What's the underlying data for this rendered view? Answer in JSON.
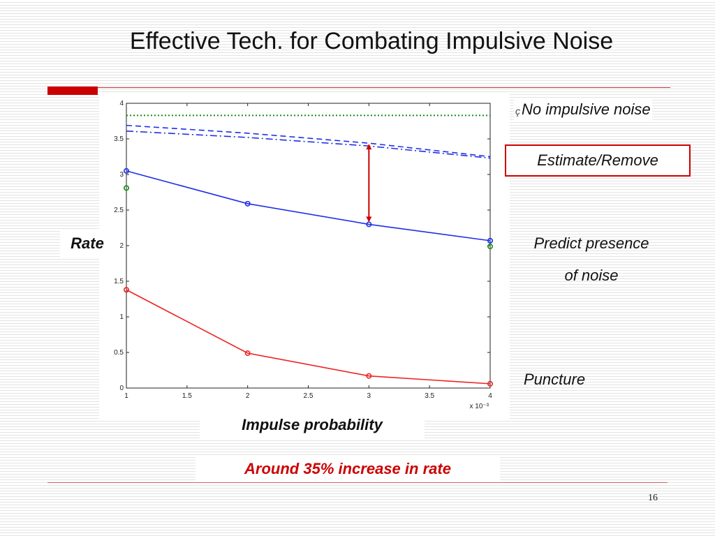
{
  "slide": {
    "title": "Effective Tech. for Combating Impulsive Noise",
    "page_number": "16",
    "y_label": "Rate",
    "x_label": "Impulse probability",
    "note": "Around 35% increase in rate",
    "legend_no_noise": "No impulsive noise",
    "legend_estimate": "Estimate/Remove",
    "legend_predict_line1": "Predict presence",
    "legend_predict_line2": "of noise",
    "legend_puncture": "Puncture",
    "legend_marker_glyph": "ç",
    "colors": {
      "accent_red": "#cc0000",
      "blue": "#1f2fe6",
      "red_series": "#ee2222",
      "green": "#109010"
    }
  },
  "chart_data": {
    "type": "line",
    "x": [
      1,
      2,
      3,
      4
    ],
    "x_ticks": [
      "1",
      "1.5",
      "2",
      "2.5",
      "3",
      "3.5",
      "4"
    ],
    "x_tick_values": [
      1,
      1.5,
      2,
      2.5,
      3,
      3.5,
      4
    ],
    "x_exponent_label": "x 10⁻³",
    "y_ticks": [
      "0",
      "0.5",
      "1",
      "1.5",
      "2",
      "2.5",
      "3",
      "3.5",
      "4"
    ],
    "y_tick_values": [
      0,
      0.5,
      1,
      1.5,
      2,
      2.5,
      3,
      3.5,
      4
    ],
    "xlim": [
      1,
      4
    ],
    "ylim": [
      0,
      4
    ],
    "grid": false,
    "series": [
      {
        "name": "No impulsive noise",
        "style": "dotted",
        "color": "#109010",
        "x": [
          1,
          4
        ],
        "values": [
          3.83,
          3.83
        ],
        "markers": false
      },
      {
        "name": "Estimate/Remove",
        "style": "dashed",
        "color": "#1f2fe6",
        "x": [
          1,
          2,
          3,
          4
        ],
        "values": [
          3.69,
          3.58,
          3.44,
          3.25
        ],
        "markers": false
      },
      {
        "style": "dashdot",
        "color": "#1f2fe6",
        "x": [
          1,
          2,
          3,
          4
        ],
        "values": [
          3.61,
          3.52,
          3.4,
          3.23
        ],
        "markers": false
      },
      {
        "name": "Predict presence of noise",
        "style": "solid",
        "color": "#1f2fe6",
        "x": [
          1,
          2,
          3,
          4
        ],
        "values": [
          3.05,
          2.59,
          2.3,
          2.07
        ],
        "markers": true
      },
      {
        "name": "Puncture",
        "style": "solid",
        "color": "#ee2222",
        "x": [
          1,
          2,
          3,
          4
        ],
        "values": [
          1.38,
          0.49,
          0.17,
          0.06
        ],
        "markers": true
      },
      {
        "style": "marker-only",
        "color": "#109010",
        "x": [
          1,
          4
        ],
        "values": [
          2.81,
          1.99
        ],
        "markers": true
      }
    ],
    "annotation": {
      "type": "double-arrow",
      "color": "#cc0000",
      "x": 3,
      "y_from": 2.33,
      "y_to": 3.43
    }
  }
}
